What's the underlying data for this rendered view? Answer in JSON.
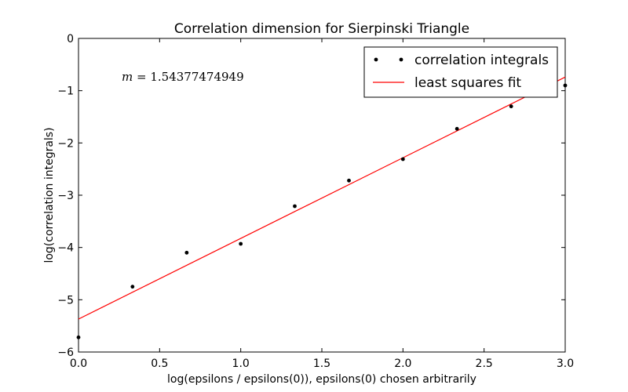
{
  "chart_data": {
    "type": "scatter",
    "title": "Correlation dimension for Sierpinski Triangle",
    "xlabel": "log(epsilons / epsilons(0)), epsilons(0) chosen arbitrarily",
    "ylabel": "log(correlation integrals)",
    "xlim": [
      0,
      3
    ],
    "ylim": [
      -6,
      0
    ],
    "xticks": [
      0,
      0.5,
      1,
      1.5,
      2,
      2.5,
      3
    ],
    "xtick_labels": [
      "0.0",
      "0.5",
      "1.0",
      "1.5",
      "2.0",
      "2.5",
      "3.0"
    ],
    "yticks": [
      0,
      -1,
      -2,
      -3,
      -4,
      -5,
      -6
    ],
    "ytick_labels": [
      "0",
      "−1",
      "−2",
      "−3",
      "−4",
      "−5",
      "−6"
    ],
    "grid": false,
    "legend_position": "top-right",
    "annotation": {
      "symbol": "m",
      "equals": " = ",
      "value": "1.54377474949"
    },
    "series": [
      {
        "name": "correlation integrals",
        "kind": "points",
        "color": "#000000",
        "x": [
          0.0,
          0.333,
          0.667,
          1.0,
          1.333,
          1.667,
          2.0,
          2.333,
          2.667,
          3.0
        ],
        "y": [
          -5.72,
          -4.75,
          -4.1,
          -3.93,
          -3.21,
          -2.72,
          -2.31,
          -1.73,
          -1.3,
          -0.9
        ]
      },
      {
        "name": "least squares fit",
        "kind": "line",
        "color": "#ff0000",
        "x": [
          0.0,
          3.0
        ],
        "y": [
          -5.37,
          -0.74
        ]
      }
    ]
  }
}
